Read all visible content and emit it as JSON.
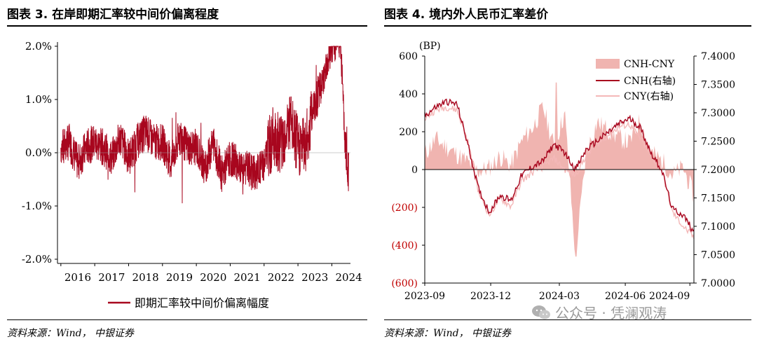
{
  "left": {
    "title": "图表 3. 在岸即期汇率较中间价偏离程度",
    "source": "资料来源：Wind， 中银证券"
  },
  "right": {
    "title": "图表 4. 境内外人民币汇率差价",
    "source": "资料来源：Wind， 中银证券"
  },
  "watermark": {
    "text": "公众号 · 凭澜观涛",
    "icon": "wechat-icon"
  },
  "colors": {
    "red": "#a8061e",
    "pink": "#f0b4b0",
    "lightpink": "#f4b8b8"
  },
  "chart_data": [
    {
      "type": "line",
      "x": [
        "2016",
        "2017",
        "2018",
        "2019",
        "2020",
        "2021",
        "2022",
        "2023",
        "2024"
      ],
      "ylim": [
        -0.02,
        0.02
      ],
      "yticks": [
        "2.0%",
        "1.0%",
        "0.0%",
        "-1.0%",
        "-2.0%"
      ],
      "ytick_values": [
        0.02,
        0.01,
        0.0,
        -0.01,
        -0.02
      ],
      "grid": false,
      "legend_position": "bottom",
      "series": [
        {
          "name": "即期汇率较中间价偏离幅度",
          "color": "#a8061e",
          "points": [
            [
              2016.0,
              0.001
            ],
            [
              2016.25,
              0.002
            ],
            [
              2016.5,
              -0.002
            ],
            [
              2016.75,
              0.001
            ],
            [
              2017.0,
              0.002
            ],
            [
              2017.25,
              0.001
            ],
            [
              2017.5,
              -0.001
            ],
            [
              2017.75,
              0.003
            ],
            [
              2018.0,
              -0.001
            ],
            [
              2018.25,
              0.002
            ],
            [
              2018.5,
              0.004
            ],
            [
              2018.75,
              0.002
            ],
            [
              2019.0,
              0.002
            ],
            [
              2019.25,
              -0.002
            ],
            [
              2019.5,
              0.003
            ],
            [
              2019.75,
              0.001
            ],
            [
              2020.0,
              0.001
            ],
            [
              2020.25,
              -0.003
            ],
            [
              2020.5,
              0.002
            ],
            [
              2020.75,
              -0.004
            ],
            [
              2021.0,
              -0.001
            ],
            [
              2021.25,
              -0.002
            ],
            [
              2021.5,
              -0.003
            ],
            [
              2021.75,
              -0.004
            ],
            [
              2022.0,
              -0.002
            ],
            [
              2022.25,
              0.003
            ],
            [
              2022.5,
              0.002
            ],
            [
              2022.75,
              0.006
            ],
            [
              2023.0,
              0.001
            ],
            [
              2023.25,
              0.002
            ],
            [
              2023.5,
              0.01
            ],
            [
              2023.75,
              0.012
            ],
            [
              2024.0,
              0.018
            ],
            [
              2024.25,
              0.019
            ],
            [
              2024.4,
              0.002
            ],
            [
              2024.5,
              -0.004
            ]
          ]
        }
      ]
    },
    {
      "type": "area+line",
      "x_ticks": [
        "2023-09",
        "2023-12",
        "2024-03",
        "2024-06",
        "2024-09"
      ],
      "y_left_label": "(BP)",
      "y_left_ticks": [
        "600",
        "400",
        "200",
        "0",
        "(200)",
        "(400)",
        "(600)"
      ],
      "y_left_values": [
        600,
        400,
        200,
        0,
        -200,
        -400,
        -600
      ],
      "y_right_ticks": [
        "7.4000",
        "7.3500",
        "7.3000",
        "7.2500",
        "7.2000",
        "7.1500",
        "7.1000",
        "7.0500",
        "7.0000"
      ],
      "y_right_values": [
        7.4,
        7.35,
        7.3,
        7.25,
        7.2,
        7.15,
        7.1,
        7.05,
        7.0
      ],
      "legend_position": "top-right",
      "series": [
        {
          "name": "CNH-CNY",
          "kind": "area",
          "axis": "left",
          "color": "#f0b4b0",
          "x": [
            0,
            0.04,
            0.08,
            0.12,
            0.16,
            0.2,
            0.24,
            0.28,
            0.32,
            0.36,
            0.4,
            0.44,
            0.48,
            0.52,
            0.56,
            0.6,
            0.64,
            0.68,
            0.72,
            0.76,
            0.8,
            0.84,
            0.88,
            0.92,
            0.96,
            1.0
          ],
          "values": [
            80,
            160,
            120,
            80,
            40,
            -10,
            10,
            70,
            20,
            150,
            220,
            330,
            120,
            300,
            -460,
            90,
            250,
            210,
            170,
            140,
            260,
            90,
            50,
            -30,
            10,
            -140
          ]
        },
        {
          "name": "CNH(右轴)",
          "kind": "line",
          "axis": "right",
          "color": "#a8061e",
          "x": [
            0,
            0.04,
            0.08,
            0.12,
            0.16,
            0.2,
            0.24,
            0.28,
            0.32,
            0.36,
            0.4,
            0.44,
            0.48,
            0.52,
            0.56,
            0.6,
            0.64,
            0.68,
            0.72,
            0.76,
            0.8,
            0.84,
            0.88,
            0.92,
            0.96,
            1.0
          ],
          "values": [
            7.295,
            7.31,
            7.32,
            7.315,
            7.245,
            7.165,
            7.125,
            7.155,
            7.145,
            7.19,
            7.205,
            7.215,
            7.245,
            7.23,
            7.2,
            7.235,
            7.25,
            7.265,
            7.28,
            7.29,
            7.275,
            7.23,
            7.2,
            7.13,
            7.12,
            7.09
          ]
        },
        {
          "name": "CNY(右轴)",
          "kind": "line",
          "axis": "right",
          "color": "#f4b8b8",
          "x": [
            0,
            0.04,
            0.08,
            0.12,
            0.16,
            0.2,
            0.24,
            0.28,
            0.32,
            0.36,
            0.4,
            0.44,
            0.48,
            0.52,
            0.56,
            0.6,
            0.64,
            0.68,
            0.72,
            0.76,
            0.8,
            0.84,
            0.88,
            0.92,
            0.96,
            1.0
          ],
          "values": [
            7.29,
            7.305,
            7.31,
            7.305,
            7.25,
            7.16,
            7.12,
            7.15,
            7.135,
            7.18,
            7.195,
            7.205,
            7.22,
            7.2,
            7.19,
            7.225,
            7.245,
            7.26,
            7.275,
            7.28,
            7.255,
            7.225,
            7.2,
            7.125,
            7.1,
            7.08
          ]
        }
      ]
    }
  ]
}
